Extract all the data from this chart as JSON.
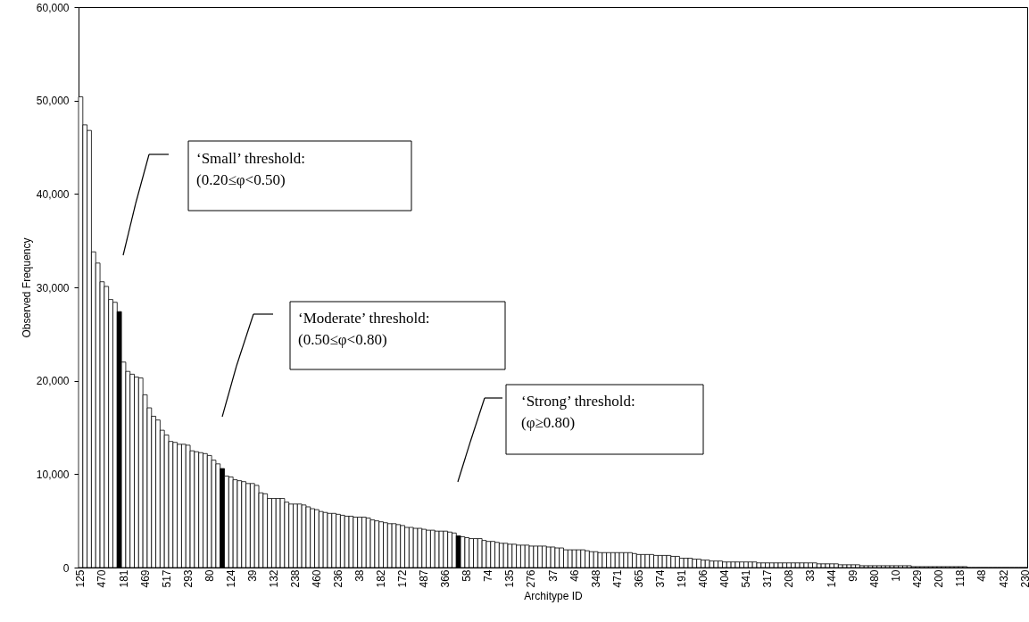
{
  "chart_data": {
    "type": "bar",
    "xlabel": "Architype ID",
    "ylabel": "Observed Frequency",
    "categories": [
      "125",
      null,
      null,
      null,
      null,
      "470",
      null,
      null,
      null,
      null,
      "181",
      null,
      null,
      null,
      null,
      "469",
      null,
      null,
      null,
      null,
      "517",
      null,
      null,
      null,
      null,
      "293",
      null,
      null,
      null,
      null,
      "80",
      null,
      null,
      null,
      null,
      "124",
      null,
      null,
      null,
      null,
      "39",
      null,
      null,
      null,
      null,
      "132",
      null,
      null,
      null,
      null,
      "238",
      null,
      null,
      null,
      null,
      "460",
      null,
      null,
      null,
      null,
      "236",
      null,
      null,
      null,
      null,
      "38",
      null,
      null,
      null,
      null,
      "182",
      null,
      null,
      null,
      null,
      "172",
      null,
      null,
      null,
      null,
      "487",
      null,
      null,
      null,
      null,
      "366",
      null,
      null,
      null,
      null,
      "58",
      null,
      null,
      null,
      null,
      "74",
      null,
      null,
      null,
      null,
      "135",
      null,
      null,
      null,
      null,
      "276",
      null,
      null,
      null,
      null,
      "37",
      null,
      null,
      null,
      null,
      "46",
      null,
      null,
      null,
      null,
      "348",
      null,
      null,
      null,
      null,
      "471",
      null,
      null,
      null,
      null,
      "365",
      null,
      null,
      null,
      null,
      "374",
      null,
      null,
      null,
      null,
      "191",
      null,
      null,
      null,
      null,
      "406",
      null,
      null,
      null,
      null,
      "404",
      null,
      null,
      null,
      null,
      "541",
      null,
      null,
      null,
      null,
      "317",
      null,
      null,
      null,
      null,
      "208",
      null,
      null,
      null,
      null,
      "33",
      null,
      null,
      null,
      null,
      "144",
      null,
      null,
      null,
      null,
      "99",
      null,
      null,
      null,
      null,
      "480",
      null,
      null,
      null,
      null,
      "10",
      null,
      null,
      null,
      null,
      "429",
      null,
      null,
      null,
      null,
      "200",
      null,
      null,
      null,
      null,
      "118",
      null,
      null,
      null,
      null,
      "48",
      null,
      null,
      null,
      null,
      "432",
      null,
      null,
      null,
      null,
      "230"
    ],
    "values": [
      50400,
      47400,
      46800,
      33800,
      32600,
      30600,
      30100,
      28700,
      28400,
      27400,
      22000,
      21000,
      20700,
      20400,
      20300,
      18500,
      17100,
      16200,
      15800,
      14700,
      14200,
      13500,
      13400,
      13200,
      13200,
      13100,
      12500,
      12400,
      12300,
      12200,
      12000,
      11500,
      11100,
      10600,
      9800,
      9700,
      9400,
      9300,
      9200,
      9000,
      9000,
      8800,
      8000,
      7900,
      7400,
      7400,
      7400,
      7400,
      7000,
      6800,
      6800,
      6800,
      6700,
      6500,
      6300,
      6200,
      6000,
      5900,
      5800,
      5800,
      5700,
      5600,
      5500,
      5500,
      5400,
      5400,
      5400,
      5300,
      5100,
      5000,
      4900,
      4800,
      4700,
      4700,
      4600,
      4500,
      4300,
      4300,
      4200,
      4200,
      4100,
      4000,
      4000,
      3900,
      3900,
      3900,
      3800,
      3700,
      3400,
      3300,
      3200,
      3100,
      3100,
      3100,
      2900,
      2800,
      2800,
      2700,
      2600,
      2600,
      2500,
      2500,
      2400,
      2400,
      2400,
      2300,
      2300,
      2300,
      2300,
      2200,
      2200,
      2100,
      2100,
      1900,
      1900,
      1900,
      1900,
      1900,
      1800,
      1700,
      1700,
      1600,
      1600,
      1600,
      1600,
      1600,
      1600,
      1600,
      1600,
      1500,
      1400,
      1400,
      1400,
      1400,
      1300,
      1300,
      1300,
      1300,
      1200,
      1200,
      1000,
      1000,
      1000,
      900,
      900,
      800,
      800,
      700,
      700,
      700,
      600,
      600,
      600,
      600,
      600,
      600,
      600,
      600,
      500,
      500,
      500,
      500,
      500,
      500,
      500,
      500,
      500,
      500,
      500,
      500,
      500,
      500,
      400,
      400,
      400,
      400,
      400,
      300,
      300,
      300,
      300,
      300,
      200,
      200,
      200,
      200,
      200,
      200,
      200,
      200,
      200,
      200,
      200,
      200,
      100,
      100,
      100,
      100,
      100,
      100,
      100,
      100,
      100,
      100,
      100,
      100,
      100,
      0,
      0,
      0,
      0,
      0,
      0,
      0,
      0,
      0,
      0,
      0,
      0,
      0,
      0
    ],
    "colors": [
      "#ffffff",
      "#ffffff",
      "#ffffff",
      "#ffffff",
      "#ffffff",
      "#ffffff",
      "#ffffff",
      "#ffffff",
      "#ffffff",
      "#000000",
      "#ffffff",
      "#ffffff",
      "#ffffff",
      "#ffffff",
      "#ffffff",
      "#ffffff",
      "#ffffff",
      "#ffffff",
      "#ffffff",
      "#ffffff",
      "#ffffff",
      "#ffffff",
      "#ffffff",
      "#ffffff",
      "#ffffff",
      "#ffffff",
      "#ffffff",
      "#ffffff",
      "#ffffff",
      "#ffffff",
      "#ffffff",
      "#ffffff",
      "#ffffff",
      "#000000",
      "#ffffff",
      "#ffffff",
      "#ffffff",
      "#ffffff",
      "#ffffff",
      "#ffffff",
      "#ffffff",
      "#ffffff",
      "#ffffff",
      "#ffffff",
      "#ffffff",
      "#ffffff",
      "#ffffff",
      "#ffffff",
      "#ffffff",
      "#ffffff",
      "#ffffff",
      "#ffffff",
      "#ffffff",
      "#ffffff",
      "#ffffff",
      "#ffffff",
      "#ffffff",
      "#ffffff",
      "#ffffff",
      "#ffffff",
      "#ffffff",
      "#ffffff",
      "#ffffff",
      "#ffffff",
      "#ffffff",
      "#ffffff",
      "#ffffff",
      "#ffffff",
      "#ffffff",
      "#ffffff",
      "#ffffff",
      "#ffffff",
      "#ffffff",
      "#ffffff",
      "#ffffff",
      "#ffffff",
      "#ffffff",
      "#ffffff",
      "#ffffff",
      "#ffffff",
      "#ffffff",
      "#ffffff",
      "#ffffff",
      "#ffffff",
      "#ffffff",
      "#ffffff",
      "#ffffff",
      "#ffffff",
      "#000000",
      "#ffffff",
      "#ffffff",
      "#ffffff",
      "#ffffff",
      "#ffffff",
      "#ffffff",
      "#ffffff",
      "#ffffff",
      "#ffffff",
      "#ffffff",
      "#ffffff",
      "#ffffff",
      "#ffffff",
      "#ffffff",
      "#ffffff",
      "#ffffff",
      "#ffffff",
      "#ffffff",
      "#ffffff",
      "#ffffff",
      "#ffffff",
      "#ffffff",
      "#ffffff",
      "#ffffff",
      "#ffffff",
      "#ffffff",
      "#ffffff",
      "#ffffff",
      "#ffffff",
      "#ffffff",
      "#ffffff",
      "#ffffff",
      "#ffffff",
      "#ffffff",
      "#ffffff",
      "#ffffff",
      "#ffffff",
      "#ffffff",
      "#ffffff",
      "#ffffff",
      "#ffffff",
      "#ffffff",
      "#ffffff",
      "#ffffff",
      "#ffffff",
      "#ffffff",
      "#ffffff",
      "#ffffff",
      "#ffffff",
      "#ffffff",
      "#ffffff",
      "#ffffff",
      "#ffffff",
      "#ffffff",
      "#ffffff",
      "#ffffff",
      "#ffffff",
      "#ffffff",
      "#ffffff",
      "#ffffff",
      "#ffffff",
      "#ffffff",
      "#ffffff",
      "#ffffff",
      "#ffffff",
      "#ffffff",
      "#ffffff",
      "#ffffff",
      "#ffffff",
      "#ffffff",
      "#ffffff",
      "#ffffff",
      "#ffffff",
      "#ffffff",
      "#ffffff",
      "#ffffff",
      "#ffffff",
      "#ffffff",
      "#ffffff",
      "#ffffff",
      "#ffffff",
      "#ffffff",
      "#ffffff",
      "#ffffff",
      "#ffffff",
      "#ffffff",
      "#ffffff",
      "#ffffff",
      "#ffffff",
      "#ffffff",
      "#ffffff",
      "#ffffff",
      "#ffffff",
      "#ffffff",
      "#ffffff",
      "#ffffff",
      "#ffffff",
      "#ffffff",
      "#ffffff",
      "#ffffff",
      "#ffffff",
      "#ffffff",
      "#ffffff",
      "#ffffff",
      "#ffffff",
      "#ffffff",
      "#ffffff",
      "#ffffff",
      "#ffffff",
      "#ffffff",
      "#ffffff",
      "#ffffff",
      "#ffffff",
      "#ffffff",
      "#ffffff",
      "#ffffff",
      "#ffffff",
      "#ffffff",
      "#ffffff",
      "#ffffff",
      "#ffffff",
      "#ffffff",
      "#ffffff",
      "#ffffff",
      "#ffffff",
      "#ffffff",
      "#ffffff",
      "#ffffff",
      "#ffffff",
      "#ffffff",
      "#ffffff",
      "#ffffff"
    ],
    "ylim": [
      0,
      60000
    ],
    "yticks": [
      {
        "value": 0,
        "label": "0"
      },
      {
        "value": 10000,
        "label": "10,000"
      },
      {
        "value": 20000,
        "label": "20,000"
      },
      {
        "value": 30000,
        "label": "30,000"
      },
      {
        "value": 40000,
        "label": "40,000"
      },
      {
        "value": 50000,
        "label": "50,000"
      },
      {
        "value": 60000,
        "label": "60,000"
      }
    ],
    "annotations": [
      "‘Small’ threshold:\n(0.20≤φ<0.50)",
      "‘Moderate’ threshold:\n(0.50≤φ<0.80)",
      "‘Strong’ threshold:\n(φ≥0.80)"
    ]
  }
}
